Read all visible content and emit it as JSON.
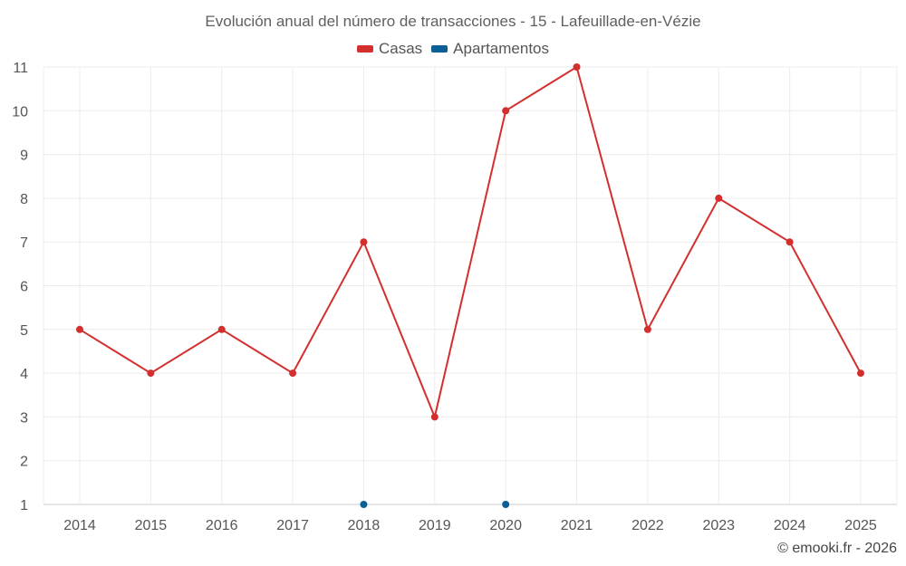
{
  "chart_data": {
    "type": "line",
    "title": "Evolución anual del número de transacciones - 15 - Lafeuillade-en-Vézie",
    "categories": [
      "2014",
      "2015",
      "2016",
      "2017",
      "2018",
      "2019",
      "2020",
      "2021",
      "2022",
      "2023",
      "2024",
      "2025"
    ],
    "series": [
      {
        "name": "Casas",
        "color": "#d32f2f",
        "values": [
          5,
          4,
          5,
          4,
          7,
          3,
          10,
          11,
          5,
          8,
          7,
          4
        ]
      },
      {
        "name": "Apartamentos",
        "color": "#0a5f96",
        "values": [
          null,
          null,
          null,
          null,
          1,
          null,
          1,
          null,
          null,
          null,
          null,
          null
        ]
      }
    ],
    "ylim": [
      1,
      11
    ],
    "yticks": [
      1,
      2,
      3,
      4,
      5,
      6,
      7,
      8,
      9,
      10,
      11
    ],
    "grid": true,
    "legend_position": "top-center"
  },
  "credit": "© emooki.fr - 2026"
}
